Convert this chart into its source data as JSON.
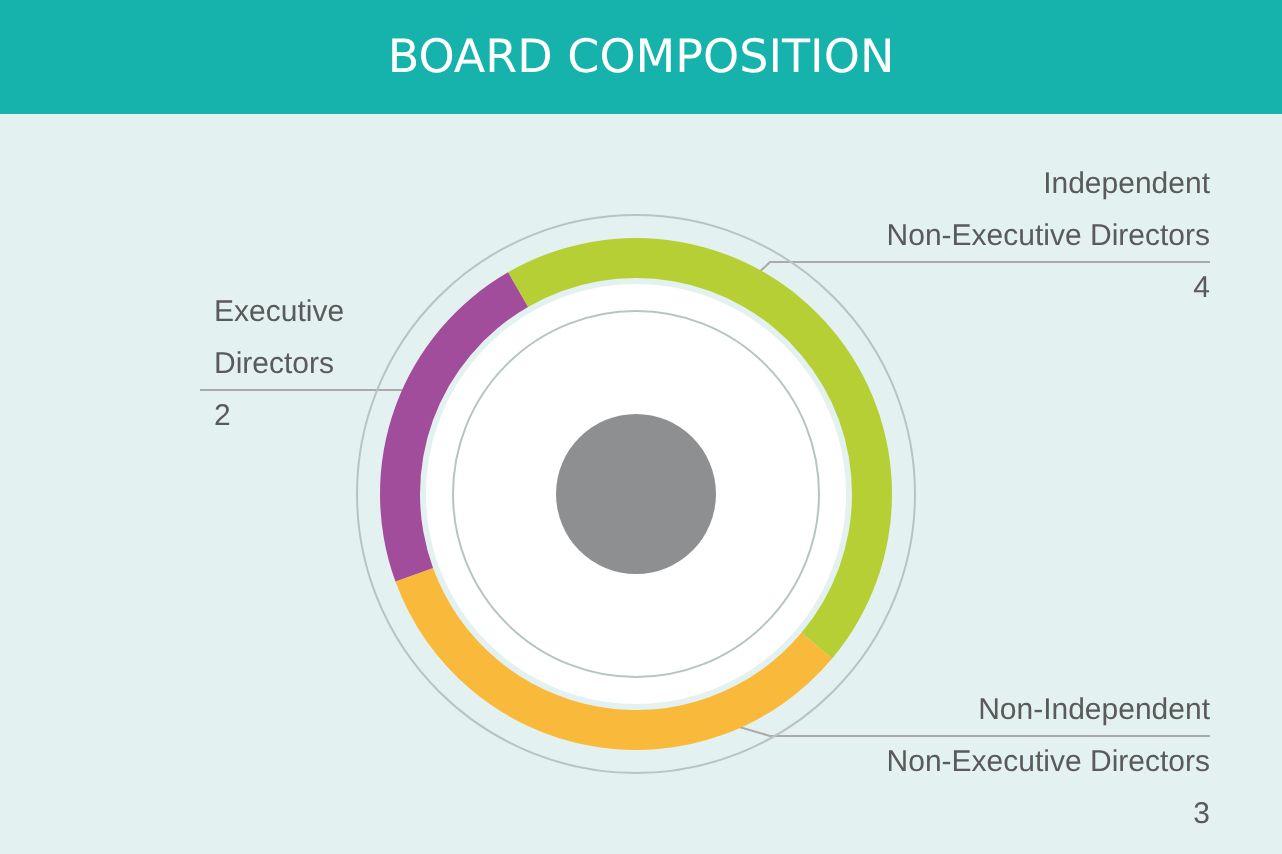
{
  "chart_data": {
    "type": "donut",
    "title": "BOARD COMPOSITION",
    "categories": [
      "Independent Non-Executive Directors",
      "Non-Independent Non-Executive Directors",
      "Executive Directors"
    ],
    "values": [
      4,
      3,
      2
    ],
    "colors": [
      "#b5cf35",
      "#f9b93b",
      "#a24d9b"
    ],
    "data_labels": true
  }
}
